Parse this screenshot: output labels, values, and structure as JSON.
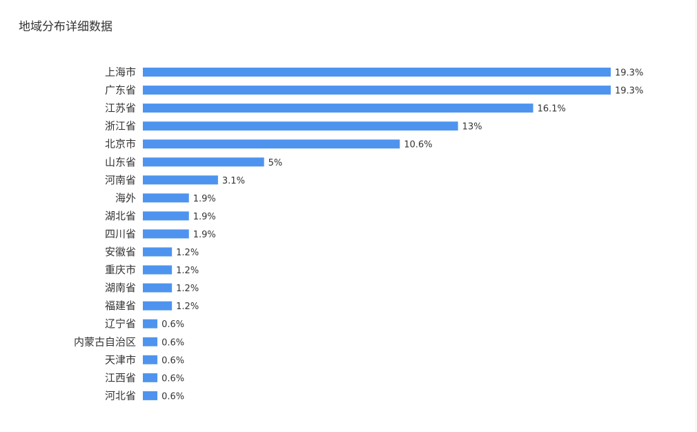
{
  "header": {
    "title": "地域分布详细数据"
  },
  "colors": {
    "bar": "#4e94ef"
  },
  "chart_data": {
    "type": "bar",
    "orientation": "horizontal",
    "title": "地域分布详细数据",
    "categories": [
      "上海市",
      "广东省",
      "江苏省",
      "浙江省",
      "北京市",
      "山东省",
      "河南省",
      "海外",
      "湖北省",
      "四川省",
      "安徽省",
      "重庆市",
      "湖南省",
      "福建省",
      "辽宁省",
      "内蒙古自治区",
      "天津市",
      "江西省",
      "河北省"
    ],
    "values": [
      19.3,
      19.3,
      16.1,
      13,
      10.6,
      5,
      3.1,
      1.9,
      1.9,
      1.9,
      1.2,
      1.2,
      1.2,
      1.2,
      0.6,
      0.6,
      0.6,
      0.6,
      0.6
    ],
    "value_labels": [
      "19.3%",
      "19.3%",
      "16.1%",
      "13%",
      "10.6%",
      "5%",
      "3.1%",
      "1.9%",
      "1.9%",
      "1.9%",
      "1.2%",
      "1.2%",
      "1.2%",
      "1.2%",
      "0.6%",
      "0.6%",
      "0.6%",
      "0.6%",
      "0.6%"
    ],
    "xlim": [
      0,
      19.3
    ],
    "grid": false,
    "legend": "none"
  }
}
